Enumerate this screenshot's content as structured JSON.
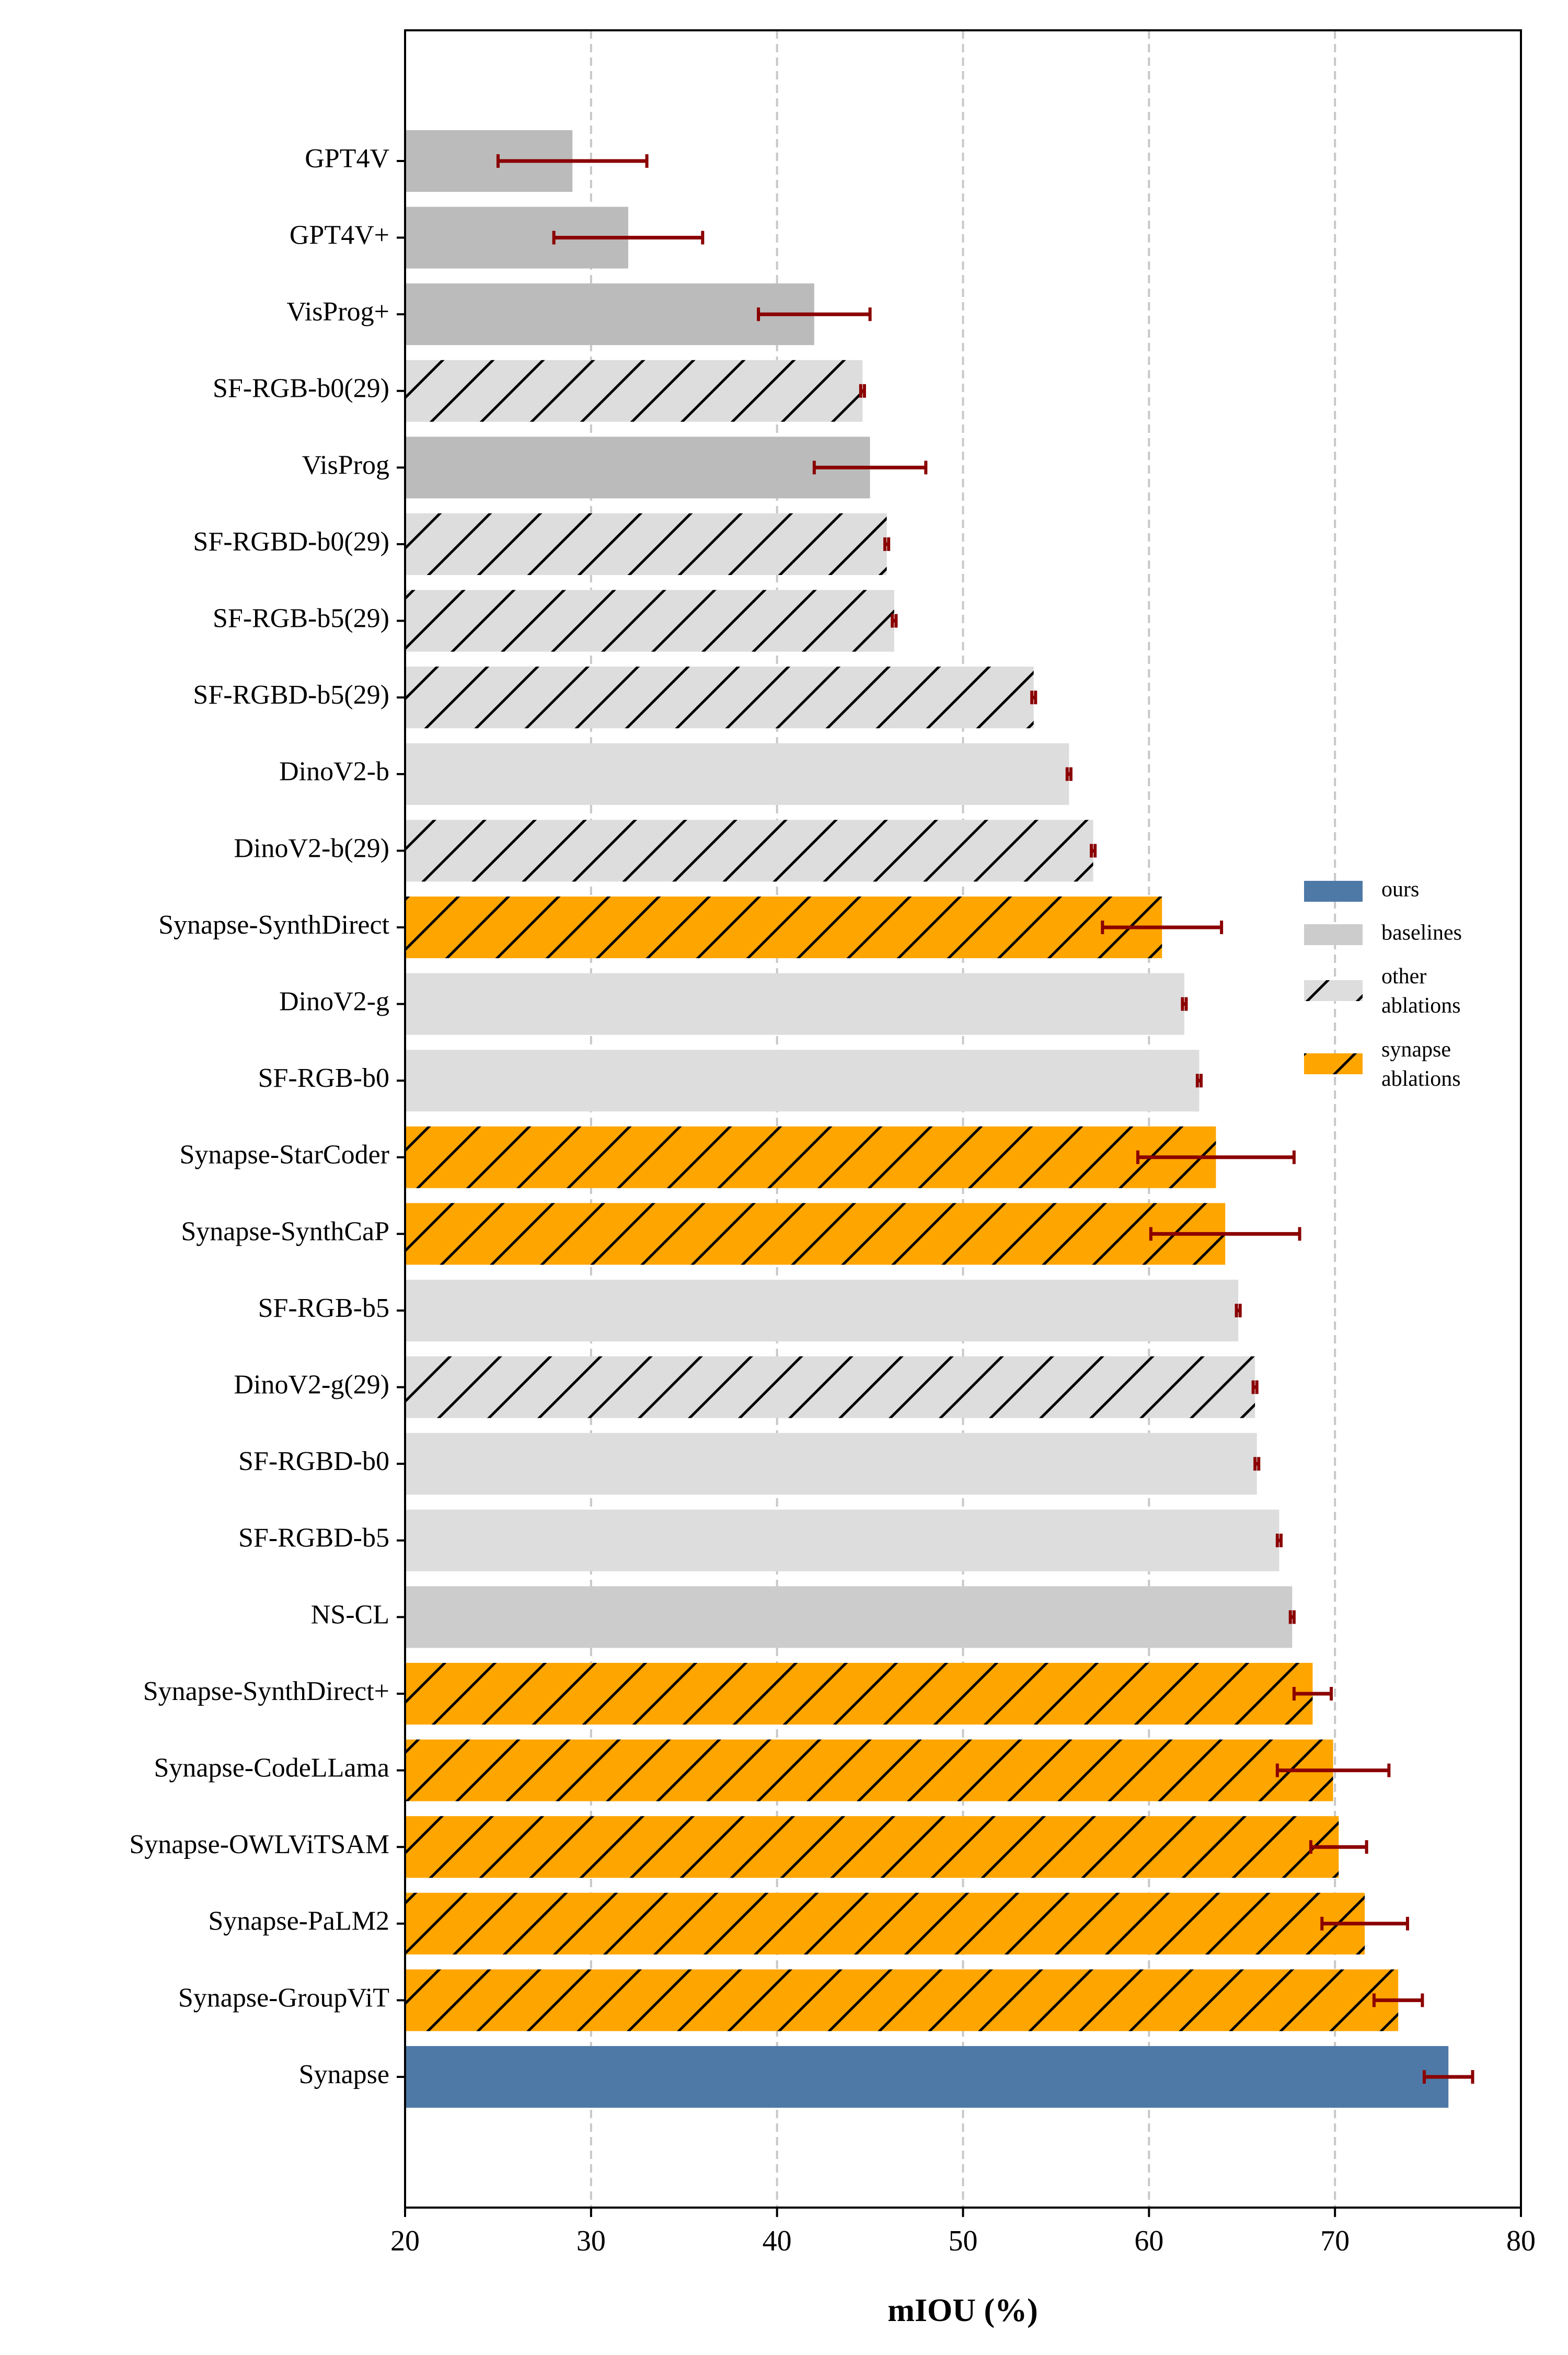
{
  "chart_data": {
    "type": "bar",
    "orientation": "horizontal",
    "title": "",
    "xlabel": "mIOU (%)",
    "ylabel": "",
    "xlim": [
      20,
      80
    ],
    "xticks": [
      20,
      30,
      40,
      50,
      60,
      70,
      80
    ],
    "grid": "vertical dashed lines at 30, 40, 50, 60, 70",
    "legend_placement": "right",
    "colors": {
      "ours": "#4e79a7",
      "baselines": "#cccccc",
      "baseline_dark": "#bbbbbb",
      "baseline_light": "#dddddd",
      "synapse_ablations": "#ffa500",
      "error_bar": "#8b0000"
    },
    "legend": [
      {
        "label": "ours",
        "group": "ours"
      },
      {
        "label": "baselines",
        "group": "baselines"
      },
      {
        "label": "other\nablations",
        "group": "other_ablations"
      },
      {
        "label": "synapse\nablations",
        "group": "synapse_ablations"
      }
    ],
    "series": [
      {
        "category": "GPT4V",
        "value": 29.0,
        "error": 4.0,
        "group": "baseline_dark"
      },
      {
        "category": "GPT4V+",
        "value": 32.0,
        "error": 4.0,
        "group": "baseline_dark"
      },
      {
        "category": "VisProg+",
        "value": 42.0,
        "error": 3.0,
        "group": "baseline_dark"
      },
      {
        "category": "SF-RGB-b0(29)",
        "value": 44.6,
        "error": 0.1,
        "group": "other_ablations"
      },
      {
        "category": "VisProg",
        "value": 45.0,
        "error": 3.0,
        "group": "baseline_dark"
      },
      {
        "category": "SF-RGBD-b0(29)",
        "value": 45.9,
        "error": 0.1,
        "group": "other_ablations"
      },
      {
        "category": "SF-RGB-b5(29)",
        "value": 46.3,
        "error": 0.1,
        "group": "other_ablations"
      },
      {
        "category": "SF-RGBD-b5(29)",
        "value": 53.8,
        "error": 0.1,
        "group": "other_ablations"
      },
      {
        "category": "DinoV2-b",
        "value": 55.7,
        "error": 0.1,
        "group": "baseline_light"
      },
      {
        "category": "DinoV2-b(29)",
        "value": 57.0,
        "error": 0.1,
        "group": "other_ablations"
      },
      {
        "category": "Synapse-SynthDirect",
        "value": 60.7,
        "error": 3.2,
        "group": "synapse_ablations"
      },
      {
        "category": "DinoV2-g",
        "value": 61.9,
        "error": 0.1,
        "group": "baseline_light"
      },
      {
        "category": "SF-RGB-b0",
        "value": 62.7,
        "error": 0.1,
        "group": "baseline_light"
      },
      {
        "category": "Synapse-StarCoder",
        "value": 63.6,
        "error": 4.2,
        "group": "synapse_ablations"
      },
      {
        "category": "Synapse-SynthCaP",
        "value": 64.1,
        "error": 4.0,
        "group": "synapse_ablations"
      },
      {
        "category": "SF-RGB-b5",
        "value": 64.8,
        "error": 0.1,
        "group": "baseline_light"
      },
      {
        "category": "DinoV2-g(29)",
        "value": 65.7,
        "error": 0.1,
        "group": "other_ablations"
      },
      {
        "category": "SF-RGBD-b0",
        "value": 65.8,
        "error": 0.1,
        "group": "baseline_light"
      },
      {
        "category": "SF-RGBD-b5",
        "value": 67.0,
        "error": 0.1,
        "group": "baseline_light"
      },
      {
        "category": "NS-CL",
        "value": 67.7,
        "error": 0.1,
        "group": "baseline_dark2"
      },
      {
        "category": "Synapse-SynthDirect+",
        "value": 68.8,
        "error": 1.0,
        "group": "synapse_ablations"
      },
      {
        "category": "Synapse-CodeLLama",
        "value": 69.9,
        "error": 3.0,
        "group": "synapse_ablations"
      },
      {
        "category": "Synapse-OWLViTSAM",
        "value": 70.2,
        "error": 1.5,
        "group": "synapse_ablations"
      },
      {
        "category": "Synapse-PaLM2",
        "value": 71.6,
        "error": 2.3,
        "group": "synapse_ablations"
      },
      {
        "category": "Synapse-GroupViT",
        "value": 73.4,
        "error": 1.3,
        "group": "synapse_ablations"
      },
      {
        "category": "Synapse",
        "value": 76.1,
        "error": 1.3,
        "group": "ours"
      }
    ]
  }
}
